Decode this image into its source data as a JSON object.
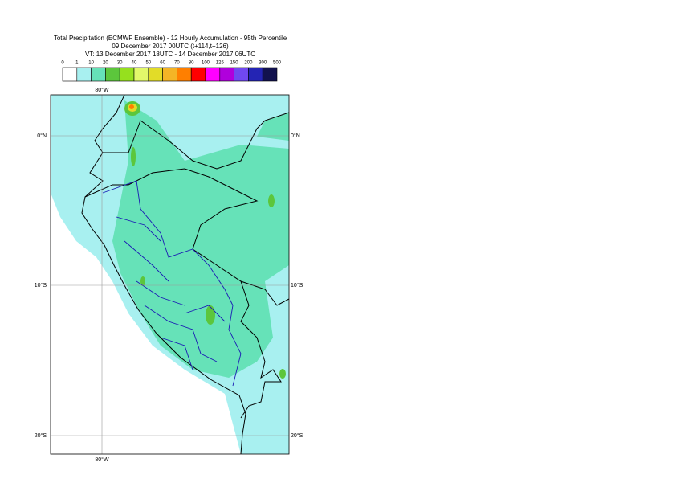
{
  "header": {
    "title": "Total Precipitation (ECMWF Ensemble) - 12 Hourly Accumulation - 95th Percentile",
    "run": "09 December 2017 00UTC (t+114,t+126)",
    "valid": "VT: 13 December 2017 18UTC - 14 December 2017 06UTC"
  },
  "colorbar": {
    "ticks": [
      0,
      1,
      10,
      20,
      30,
      40,
      50,
      60,
      70,
      80,
      100,
      125,
      150,
      200,
      300,
      500
    ],
    "colors": [
      "#ffffff",
      "#a8f0f0",
      "#66e2b8",
      "#5cc63c",
      "#96e01e",
      "#e2f86a",
      "#e2dc28",
      "#f4b426",
      "#ff7f00",
      "#ff0000",
      "#ff00ff",
      "#b000dc",
      "#7048f0",
      "#2424b4",
      "#12124e"
    ]
  },
  "map": {
    "lon_label": "80°W",
    "lat_labels": [
      "0°N",
      "10°S",
      "20°S"
    ]
  }
}
